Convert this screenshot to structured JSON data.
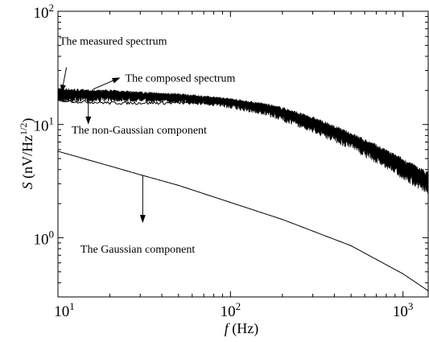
{
  "chart_data": {
    "type": "line",
    "scale": {
      "x": "log",
      "y": "log"
    },
    "xlim": [
      10,
      1400
    ],
    "ylim": [
      0.3,
      100
    ],
    "grid": false,
    "legend": "none",
    "xlabel": {
      "var": "f",
      "unit": " (Hz)"
    },
    "ylabel": {
      "var": "S",
      "unit_prefix": " (nV/Hz",
      "unit_exp": "1/2",
      "unit_suffix": ")"
    },
    "x_ticks": [
      {
        "value": 10,
        "base": "10",
        "exp": "1"
      },
      {
        "value": 100,
        "base": "10",
        "exp": "2"
      },
      {
        "value": 1000,
        "base": "10",
        "exp": "3"
      }
    ],
    "y_ticks": [
      {
        "value": 1,
        "base": "10",
        "exp": "0"
      },
      {
        "value": 10,
        "base": "10",
        "exp": "1"
      },
      {
        "value": 100,
        "base": "10",
        "exp": "2"
      }
    ],
    "series": [
      {
        "key": "measured",
        "style": "noisy-band",
        "x": [
          10,
          15,
          20,
          30,
          50,
          80,
          100,
          150,
          200,
          300,
          500,
          700,
          1000,
          1400
        ],
        "y": [
          19,
          18.5,
          18.5,
          18,
          17.5,
          16.5,
          16,
          14.5,
          13,
          10.5,
          7.5,
          5.8,
          4.3,
          3.2
        ],
        "spread_low": [
          0.82,
          0.85,
          0.86,
          0.88,
          0.88,
          0.88,
          0.86,
          0.84,
          0.82,
          0.8,
          0.8,
          0.78,
          0.76,
          0.74
        ],
        "spread_high": [
          1.12,
          1.1,
          1.1,
          1.08,
          1.08,
          1.07,
          1.07,
          1.08,
          1.1,
          1.12,
          1.14,
          1.16,
          1.18,
          1.2
        ]
      },
      {
        "key": "composed",
        "style": "line",
        "x": [
          10,
          12,
          15,
          20,
          30,
          50,
          80,
          100
        ],
        "y": [
          20.5,
          20,
          19.5,
          19.5,
          19,
          18,
          17,
          16.5
        ]
      },
      {
        "key": "non-gaussian",
        "style": "line",
        "x": [
          10,
          12,
          15,
          20,
          30,
          50,
          80,
          100
        ],
        "y": [
          16.5,
          16,
          15.8,
          15.5,
          15.5,
          15.5,
          15.5,
          15.5
        ]
      },
      {
        "key": "gaussian",
        "style": "line",
        "x": [
          10,
          20,
          30,
          50,
          100,
          200,
          500,
          1000,
          1400
        ],
        "y": [
          5.8,
          4.3,
          3.6,
          2.9,
          2.05,
          1.45,
          0.85,
          0.48,
          0.34
        ]
      }
    ],
    "annotations": [
      {
        "text": "The measured spectrum",
        "text_at": [
          10.2,
          55
        ],
        "arrow_from": [
          11.2,
          32
        ],
        "arrow_to": [
          10.5,
          19
        ]
      },
      {
        "text": "The composed spectrum",
        "text_at": [
          23,
          26
        ],
        "arrow_from": [
          16,
          20.5
        ],
        "arrow_to": [
          23,
          26
        ]
      },
      {
        "text": "The non-Gaussian component",
        "text_at": [
          12,
          9
        ],
        "arrow_from": [
          15,
          15.7
        ],
        "arrow_to": [
          15,
          10
        ]
      },
      {
        "text": "The Gaussian component",
        "text_at": [
          13.5,
          0.8
        ],
        "arrow_from": [
          31,
          3.55
        ],
        "arrow_to": [
          31,
          1.35
        ]
      }
    ]
  }
}
